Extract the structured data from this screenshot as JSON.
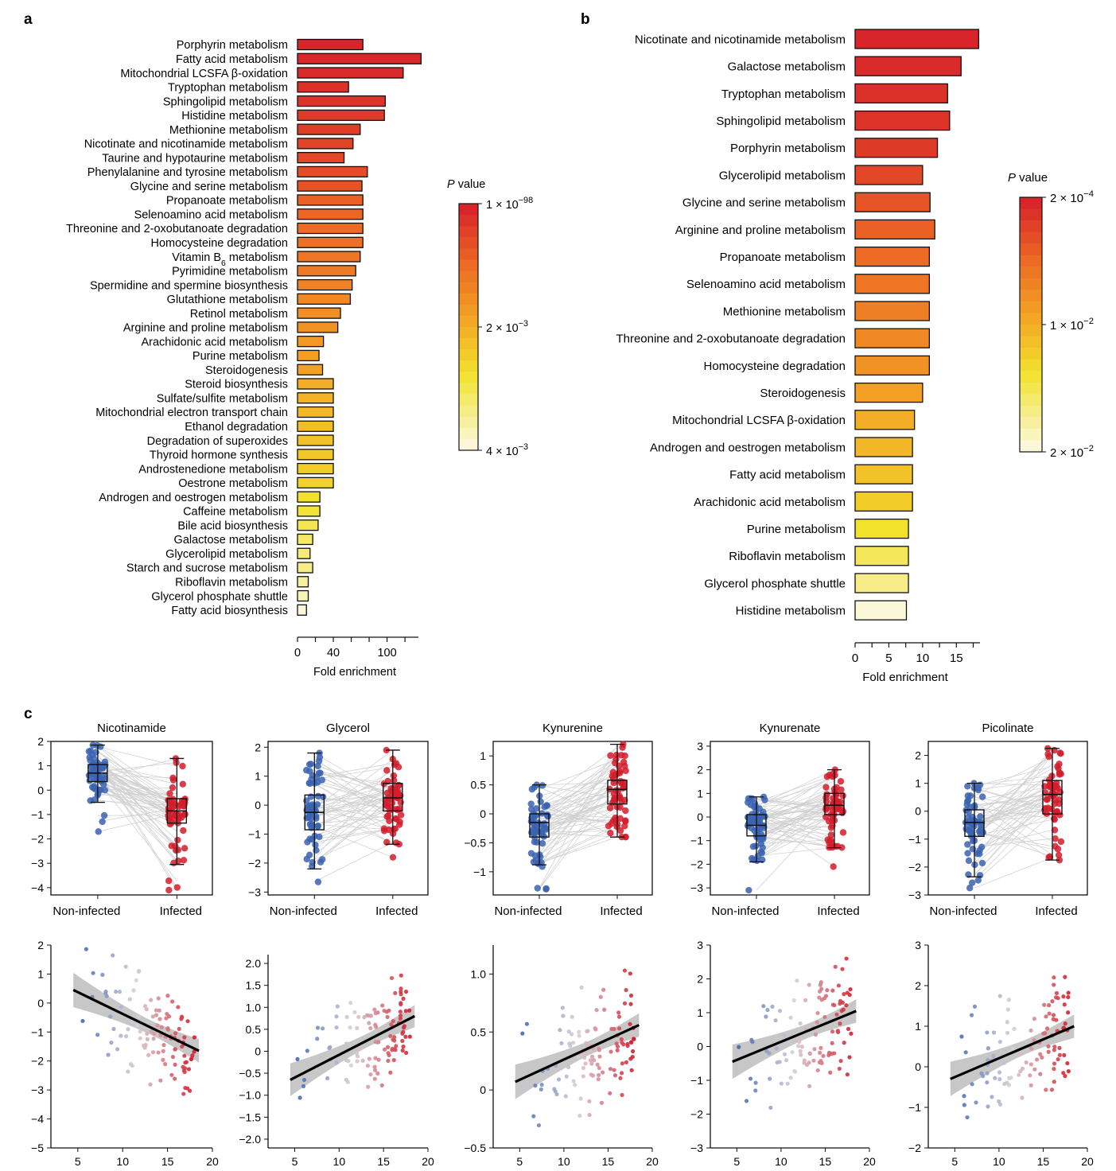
{
  "panel_labels": {
    "a": "a",
    "b": "b",
    "c": "c"
  },
  "colors": {
    "low": "#fbf7d8",
    "mid": "#f2e22c",
    "high": "#d7252a",
    "box_blue": "#3b63b2",
    "box_red": "#d41c2c",
    "band": "#bdbdbd"
  },
  "chart_data": [
    {
      "id": "panel_a",
      "type": "bar",
      "orientation": "horizontal",
      "categories": [
        "Porphyrin metabolism",
        "Fatty acid metabolism",
        "Mitochondrial LCSFA β-oxidation",
        "Tryptophan metabolism",
        "Sphingolipid metabolism",
        "Histidine metabolism",
        "Methionine metabolism",
        "Nicotinate and nicotinamide metabolism",
        "Taurine and hypotaurine metabolism",
        "Phenylalanine and tyrosine metabolism",
        "Glycine and serine metabolism",
        "Propanoate metabolism",
        "Selenoamino acid metabolism",
        "Threonine and 2-oxobutanoate degradation",
        "Homocysteine degradation",
        "Vitamin B6 metabolism",
        "Pyrimidine metabolism",
        "Spermidine and spermine biosynthesis",
        "Glutathione metabolism",
        "Retinol metabolism",
        "Arginine and proline metabolism",
        "Arachidonic acid metabolism",
        "Purine metabolism",
        "Steroidogenesis",
        "Steroid biosynthesis",
        "Sulfate/sulfite metabolism",
        "Mitochondrial electron transport chain",
        "Ethanol degradation",
        "Degradation of superoxides",
        "Thyroid hormone synthesis",
        "Androstenedione metabolism",
        "Oestrone metabolism",
        "Androgen and oestrogen metabolism",
        "Caffeine metabolism",
        "Bile acid biosynthesis",
        "Galactose metabolism",
        "Glycerolipid metabolism",
        "Starch and sucrose metabolism",
        "Riboflavin metabolism",
        "Glycerol phosphate shuttle",
        "Fatty acid biosynthesis"
      ],
      "values": [
        73,
        138,
        118,
        57,
        98,
        97,
        70,
        62,
        52,
        78,
        72,
        73,
        73,
        73,
        73,
        70,
        65,
        61,
        59,
        48,
        45,
        29,
        24,
        28,
        40,
        40,
        40,
        40,
        40,
        40,
        40,
        40,
        25,
        25,
        23,
        17,
        14,
        17,
        12,
        12,
        10
      ],
      "color_position": [
        1.0,
        0.99,
        0.98,
        0.96,
        0.95,
        0.93,
        0.92,
        0.9,
        0.88,
        0.86,
        0.84,
        0.8,
        0.78,
        0.76,
        0.74,
        0.72,
        0.7,
        0.67,
        0.64,
        0.62,
        0.6,
        0.58,
        0.56,
        0.55,
        0.5,
        0.48,
        0.46,
        0.44,
        0.42,
        0.4,
        0.38,
        0.36,
        0.3,
        0.28,
        0.24,
        0.2,
        0.17,
        0.14,
        0.1,
        0.06,
        0.0
      ],
      "xlabel": "Fold enrichment",
      "xticks": [
        "0",
        "40",
        "100"
      ],
      "xtick_values": [
        0,
        40,
        100
      ],
      "xlim": [
        0,
        135
      ],
      "colorbar": {
        "title_italic": "P",
        "title_rest": " value",
        "ticks": [
          {
            "base": "1 × 10",
            "exp": "−98",
            "pos": 1.0
          },
          {
            "base": "2 × 10",
            "exp": "−3",
            "pos": 0.5
          },
          {
            "base": "4 × 10",
            "exp": "−3",
            "pos": 0.0
          }
        ]
      }
    },
    {
      "id": "panel_b",
      "type": "bar",
      "orientation": "horizontal",
      "categories": [
        "Nicotinate and nicotinamide metabolism",
        "Galactose metabolism",
        "Tryptophan metabolism",
        "Sphingolipid metabolism",
        "Porphyrin metabolism",
        "Glycerolipid metabolism",
        "Glycine and serine metabolism",
        "Arginine and proline metabolism",
        "Propanoate metabolism",
        "Selenoamino acid metabolism",
        "Methionine metabolism",
        "Threonine and 2-oxobutanoate degradation",
        "Homocysteine degradation",
        "Steroidogenesis",
        "Mitochondrial LCSFA β-oxidation",
        "Androgen and oestrogen metabolism",
        "Fatty acid metabolism",
        "Arachidonic acid metabolism",
        "Purine metabolism",
        "Riboflavin metabolism",
        "Glycerol phosphate shuttle",
        "Histidine metabolism"
      ],
      "values": [
        18.3,
        15.7,
        13.7,
        14.0,
        12.2,
        10.0,
        11.1,
        11.8,
        11.0,
        11.0,
        11.0,
        11.0,
        11.0,
        10.0,
        8.8,
        8.5,
        8.5,
        8.5,
        7.9,
        7.9,
        7.9,
        7.6
      ],
      "color_position": [
        1.0,
        0.98,
        0.96,
        0.95,
        0.93,
        0.88,
        0.84,
        0.8,
        0.76,
        0.72,
        0.68,
        0.64,
        0.6,
        0.55,
        0.5,
        0.46,
        0.42,
        0.38,
        0.3,
        0.22,
        0.14,
        0.0
      ],
      "xlabel": "Fold enrichment",
      "xticks": [
        "0",
        "5",
        "10",
        "15"
      ],
      "xtick_values": [
        0,
        5,
        10,
        15
      ],
      "xlim": [
        0,
        18.5
      ],
      "colorbar": {
        "title_italic": "P",
        "title_rest": " value",
        "ticks": [
          {
            "base": "2 × 10",
            "exp": "−4",
            "pos": 1.0
          },
          {
            "base": "1 × 10",
            "exp": "−2",
            "pos": 0.5
          },
          {
            "base": "2 × 10",
            "exp": "−2",
            "pos": 0.0
          }
        ]
      }
    },
    {
      "id": "panel_c_boxplots",
      "type": "box",
      "groups": [
        "Non-infected",
        "Infected"
      ],
      "series": [
        {
          "name": "Nicotinamide",
          "ylim": [
            -4.3,
            2
          ],
          "yticks": [
            2,
            1,
            0,
            -1,
            -2,
            -3,
            -4
          ],
          "non_infected": {
            "min": -0.5,
            "q1": 0.35,
            "median": 0.7,
            "q3": 1.05,
            "max": 1.85,
            "low": -1.7
          },
          "infected": {
            "min": -3.05,
            "q1": -1.35,
            "median": -0.85,
            "q3": -0.35,
            "max": 1.3,
            "low": -4.1
          }
        },
        {
          "name": "Glycerol",
          "ylim": [
            -3.1,
            2.2
          ],
          "yticks": [
            2,
            1,
            0,
            -1,
            -2,
            -3
          ],
          "non_infected": {
            "min": -2.2,
            "q1": -0.85,
            "median": -0.25,
            "q3": 0.35,
            "max": 1.8,
            "low": -2.65
          },
          "infected": {
            "min": -1.35,
            "q1": -0.2,
            "median": 0.25,
            "q3": 0.75,
            "max": 1.9,
            "low": -1.8
          }
        },
        {
          "name": "Kynurenine",
          "ylim": [
            -1.4,
            1.25
          ],
          "yticks": [
            1,
            0.5,
            0,
            -0.5,
            -1
          ],
          "non_infected": {
            "min": -0.88,
            "q1": -0.4,
            "median": -0.15,
            "q3": 0,
            "max": 0.5,
            "low": -1.3
          },
          "infected": {
            "min": -0.4,
            "q1": 0.17,
            "median": 0.42,
            "q3": 0.58,
            "max": 1.2,
            "low": -0.4
          }
        },
        {
          "name": "Kynurenate",
          "ylim": [
            -3.3,
            3.2
          ],
          "yticks": [
            3,
            2,
            1,
            0,
            -1,
            -2,
            -3
          ],
          "non_infected": {
            "min": -1.9,
            "q1": -0.8,
            "median": -0.35,
            "q3": 0.1,
            "max": 0.85,
            "low": -3.1
          },
          "infected": {
            "min": -1.3,
            "q1": 0.1,
            "median": 0.5,
            "q3": 1.0,
            "max": 2.0,
            "low": -2.1
          }
        },
        {
          "name": "Picolinate",
          "ylim": [
            -3,
            2.5
          ],
          "yticks": [
            2,
            1,
            0,
            -1,
            -2,
            -3
          ],
          "non_infected": {
            "min": -2.35,
            "q1": -0.9,
            "median": -0.4,
            "q3": 0.05,
            "max": 1.0,
            "low": -2.75
          },
          "infected": {
            "min": -1.75,
            "q1": -0.1,
            "median": 0.6,
            "q3": 1.1,
            "max": 2.25,
            "low": -1.75
          }
        }
      ]
    },
    {
      "id": "panel_c_regressions",
      "type": "scatter",
      "xlabel_main": "log",
      "xlabel_sub": "2",
      "xlabel_rest": " parasitemia",
      "xlim": [
        2,
        20
      ],
      "xticks": [
        5,
        10,
        15,
        20
      ],
      "series": [
        {
          "name": "Nicotinamide",
          "ylim": [
            -5,
            2
          ],
          "yticks": [
            2,
            1,
            0,
            -1,
            -2,
            -3,
            -4,
            -5
          ],
          "line": [
            [
              4.5,
              0.45
            ],
            [
              18.5,
              -1.65
            ]
          ]
        },
        {
          "name": "Glycerol",
          "ylim": [
            -2.2,
            2.2
          ],
          "yticks": [
            2.0,
            1.5,
            1.0,
            0.5,
            0,
            -0.5,
            -1.0,
            -1.5,
            -2.0
          ],
          "ytick_labels": [
            "2.0",
            "1.5",
            "1.0",
            "0.5",
            "0",
            "−0.5",
            "−1.0",
            "−1.5",
            "−2.0"
          ],
          "line": [
            [
              4.5,
              -0.65
            ],
            [
              18.5,
              0.8
            ]
          ]
        },
        {
          "name": "Kynurenine",
          "ylim": [
            -0.5,
            1.25
          ],
          "yticks": [
            1.0,
            0.5,
            0,
            -0.5
          ],
          "ytick_labels": [
            "1.0",
            "0.5",
            "0",
            "−0.5"
          ],
          "line": [
            [
              4.5,
              0.07
            ],
            [
              18.5,
              0.56
            ]
          ]
        },
        {
          "name": "Kynurenate",
          "ylim": [
            -3,
            3
          ],
          "yticks": [
            3,
            2,
            1,
            0,
            -1,
            -2,
            -3
          ],
          "line": [
            [
              4.5,
              -0.45
            ],
            [
              18.5,
              1.05
            ]
          ]
        },
        {
          "name": "Picolinate",
          "ylim": [
            -2,
            3
          ],
          "yticks": [
            3,
            2,
            1,
            0,
            -1,
            -2
          ],
          "line": [
            [
              4.5,
              -0.3
            ],
            [
              18.5,
              1.0
            ]
          ]
        }
      ]
    }
  ]
}
